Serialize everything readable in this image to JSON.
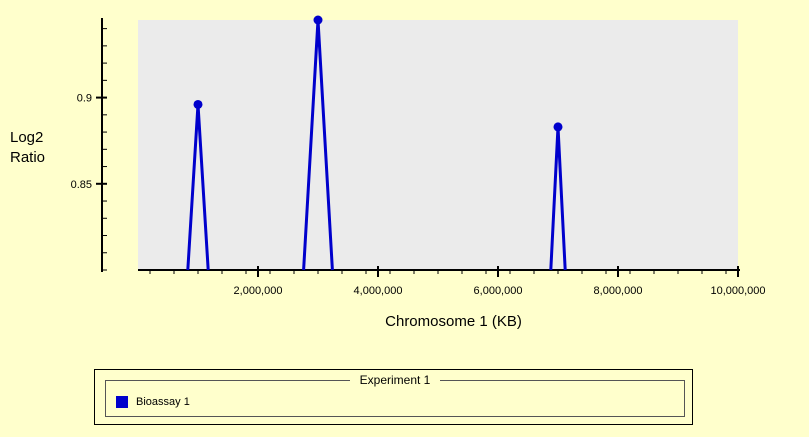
{
  "chart_data": {
    "type": "line",
    "xlabel": "Chromosome 1 (KB)",
    "ylabel": [
      "Log2",
      "Ratio"
    ],
    "xlim": [
      0,
      10000000
    ],
    "ylim": [
      0.8,
      0.945
    ],
    "x_tick_labels": [
      {
        "value": 2000000,
        "label": "2,000,000"
      },
      {
        "value": 4000000,
        "label": "4,000,000"
      },
      {
        "value": 6000000,
        "label": "6,000,000"
      },
      {
        "value": 8000000,
        "label": "8,000,000"
      },
      {
        "value": 10000000,
        "label": "10,000,000"
      }
    ],
    "y_tick_labels": [
      {
        "value": 0.85,
        "label": "0.85"
      },
      {
        "value": 0.9,
        "label": "0.9"
      }
    ],
    "series": [
      {
        "name": "Bioassay 1",
        "color": "#0000cc",
        "points": [
          {
            "x": 1000000,
            "y": 0.896
          },
          {
            "x": 3000000,
            "y": 0.945
          },
          {
            "x": 7000000,
            "y": 0.883
          }
        ],
        "peak_halfwidth": [
          170000,
          240000,
          120000
        ]
      }
    ],
    "grid": false,
    "plot_background": "#ebebeb"
  },
  "legend": {
    "title": "Experiment 1",
    "items": [
      {
        "label": "Bioassay 1",
        "color": "#0000cc"
      }
    ]
  }
}
